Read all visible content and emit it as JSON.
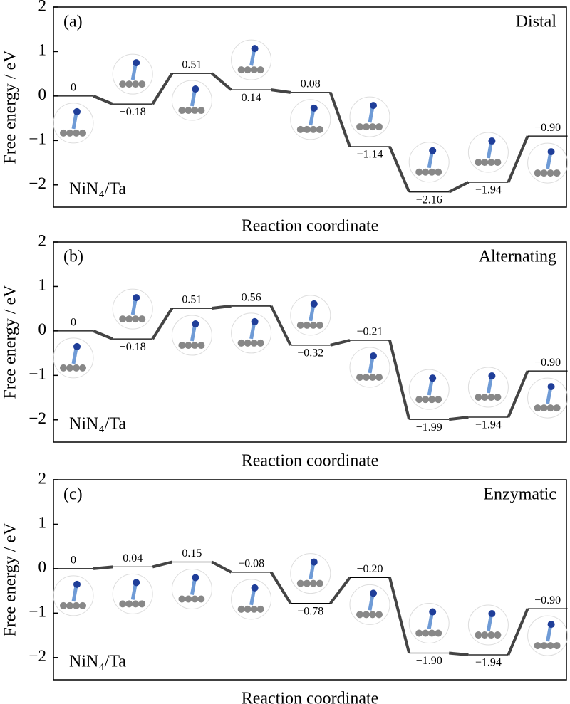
{
  "chart_data": [
    {
      "type": "energy-profile",
      "panel": "(a)",
      "title": "Distal",
      "annotation": "NiN₄/Ta",
      "xlabel": "Reaction coordinate",
      "ylabel": "Free energy / eV",
      "values": [
        0,
        -0.18,
        0.51,
        0.14,
        0.08,
        -1.14,
        -2.16,
        -1.94,
        -0.9
      ],
      "value_labels": [
        "0",
        "−0.18",
        "0.51",
        "0.14",
        "0.08",
        "−1.14",
        "−2.16",
        "−1.94",
        "−0.90"
      ],
      "label_side": [
        "above",
        "below",
        "above",
        "below",
        "above",
        "below",
        "below",
        "below",
        "above"
      ],
      "color": "#444444",
      "ylim": [
        -2.5,
        2
      ],
      "yticks": [
        {
          "value": -2,
          "label": "−2"
        },
        {
          "value": -1,
          "label": "−1"
        },
        0,
        1,
        2
      ]
    },
    {
      "type": "energy-profile",
      "panel": "(b)",
      "title": "Alternating",
      "annotation": "NiN₄/Ta",
      "xlabel": "Reaction coordinate",
      "ylabel": "Free energy / eV",
      "values": [
        0,
        -0.18,
        0.51,
        0.56,
        -0.32,
        -0.21,
        -1.99,
        -1.94,
        -0.9
      ],
      "value_labels": [
        "0",
        "−0.18",
        "0.51",
        "0.56",
        "−0.32",
        "−0.21",
        "−1.99",
        "−1.94",
        "−0.90"
      ],
      "label_side": [
        "above",
        "below",
        "above",
        "above",
        "below",
        "above",
        "below",
        "below",
        "above"
      ],
      "color": "#444444",
      "ylim": [
        -2.5,
        2
      ],
      "yticks": [
        {
          "value": -2,
          "label": "−2"
        },
        {
          "value": -1,
          "label": "−1"
        },
        0,
        1,
        2
      ]
    },
    {
      "type": "energy-profile",
      "panel": "(c)",
      "title": "Enzymatic",
      "annotation": "NiN₄/Ta",
      "xlabel": "Reaction coordinate",
      "ylabel": "Free energy / eV",
      "values": [
        0,
        0.04,
        0.15,
        -0.08,
        -0.78,
        -0.2,
        -1.9,
        -1.94,
        -0.9
      ],
      "value_labels": [
        "0",
        "0.04",
        "0.15",
        "−0.08",
        "−0.78",
        "−0.20",
        "−1.90",
        "−1.94",
        "−0.90"
      ],
      "label_side": [
        "above",
        "above",
        "above",
        "above",
        "below",
        "above",
        "below",
        "below",
        "above"
      ],
      "color": "#444444",
      "ylim": [
        -2.5,
        2
      ],
      "yticks": [
        {
          "value": -2,
          "label": "−2"
        },
        {
          "value": -1,
          "label": "−1"
        },
        0,
        1,
        2
      ]
    }
  ]
}
